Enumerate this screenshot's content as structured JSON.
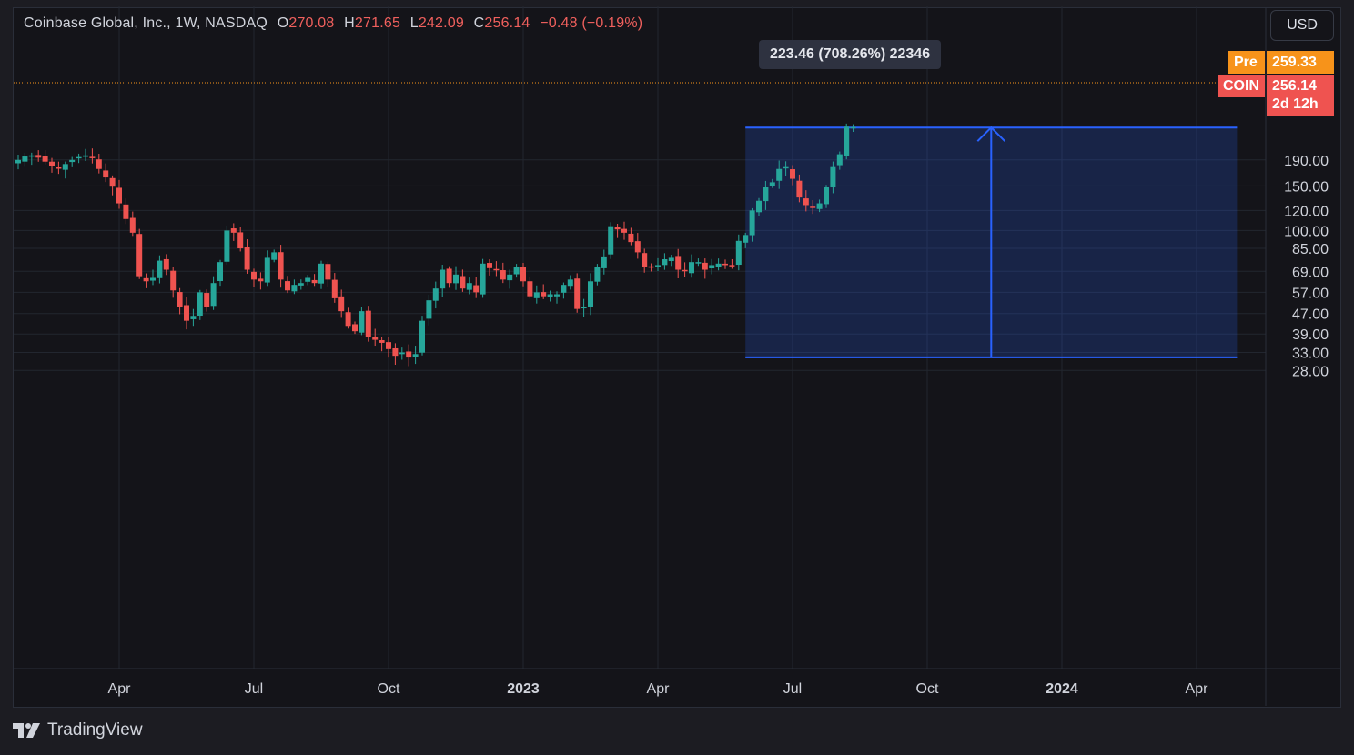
{
  "header": {
    "symbol_line": "Coinbase Global, Inc., 1W, NASDAQ",
    "o_label": "O",
    "o_value": "270.08",
    "h_label": "H",
    "h_value": "271.65",
    "l_label": "L",
    "l_value": "242.09",
    "c_label": "C",
    "c_value": "256.14",
    "change": "−0.48 (−0.19%)"
  },
  "currency_button": "USD",
  "price_tags": {
    "pre_label": "Pre",
    "pre_value": "259.33",
    "symbol_label": "COIN",
    "last_value": "256.14",
    "countdown": "2d 12h"
  },
  "measure": {
    "label": "223.46 (708.26%) 22346",
    "from_price": 31.55,
    "to_price": 255.0,
    "from_week": 108,
    "to_week": 181
  },
  "brand": {
    "name": "TradingView"
  },
  "colors": {
    "up": "#26a69a",
    "down": "#ef5350",
    "measure": "#2962ff",
    "pre": "#f7931a"
  },
  "chart_data": {
    "type": "candlestick",
    "scale": "log",
    "ylim": [
      25,
      280
    ],
    "y_ticks": [
      "190.00",
      "150.00",
      "120.00",
      "100.00",
      "85.00",
      "69.00",
      "57.00",
      "47.00",
      "39.00",
      "33.00",
      "28.00"
    ],
    "x_ticks": [
      "Apr",
      "Jul",
      "Oct",
      "2023",
      "Apr",
      "Jul",
      "Oct",
      "2024",
      "Apr"
    ],
    "close_series": [
      190,
      196,
      198,
      194,
      187,
      180,
      176,
      183,
      190,
      195,
      198,
      193,
      175,
      162,
      149,
      128,
      111,
      98,
      66,
      63,
      65,
      76,
      70,
      58,
      50,
      44,
      46,
      57,
      50,
      62,
      75,
      100,
      98,
      85,
      70,
      64,
      63,
      78,
      82,
      64,
      58,
      61,
      62,
      65,
      62,
      74,
      64,
      54,
      48,
      42,
      40,
      48,
      38,
      37,
      36,
      34,
      32,
      33,
      31.5,
      32.5,
      44,
      53,
      59,
      70,
      62,
      67,
      59,
      62,
      57,
      74,
      71,
      70,
      64,
      67,
      72,
      63,
      55,
      57,
      55,
      56,
      56,
      61,
      64,
      49,
      50,
      63,
      72,
      79,
      104,
      101,
      98,
      90,
      82,
      72,
      72,
      73,
      77,
      78,
      70,
      69,
      75,
      75,
      70,
      73,
      74,
      73,
      73,
      91,
      96,
      120,
      131,
      148,
      155,
      175,
      178,
      160,
      135,
      126,
      124,
      128,
      148,
      178,
      200,
      257,
      256
    ]
  }
}
